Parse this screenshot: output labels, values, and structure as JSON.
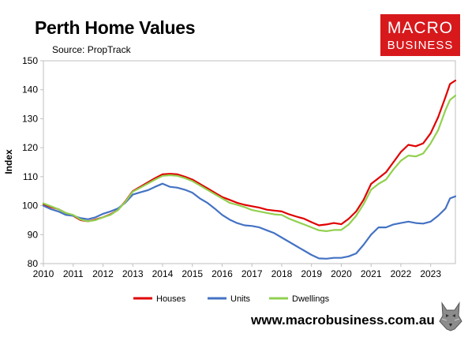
{
  "title": "Perth Home Values",
  "source": "Source: PropTrack",
  "logo": {
    "line1": "MACRO",
    "line2": "BUSINESS"
  },
  "url": "www.macrobusiness.com.au",
  "badge_icon": "wolf-icon",
  "colors": {
    "houses": "#e00000",
    "units": "#4472c4",
    "dwellings": "#92d050",
    "logo_bg": "#d7191c"
  },
  "chart_data": {
    "type": "line",
    "title": "Perth Home Values",
    "ylabel": "Index",
    "xlabel": "",
    "ylim": [
      80,
      150
    ],
    "xlim": [
      2010,
      2023.83
    ],
    "yticks": [
      80,
      90,
      100,
      110,
      120,
      130,
      140,
      150
    ],
    "xticks": [
      2010,
      2011,
      2012,
      2013,
      2014,
      2015,
      2016,
      2017,
      2018,
      2019,
      2020,
      2021,
      2022,
      2023
    ],
    "grid": false,
    "legend_position": "bottom",
    "series": [
      {
        "name": "Houses",
        "color": "#e00000",
        "x": [
          2010,
          2010.25,
          2010.5,
          2010.75,
          2011,
          2011.25,
          2011.5,
          2011.75,
          2012,
          2012.25,
          2012.5,
          2012.75,
          2013,
          2013.25,
          2013.5,
          2013.75,
          2014,
          2014.25,
          2014.5,
          2014.75,
          2015,
          2015.25,
          2015.5,
          2015.75,
          2016,
          2016.25,
          2016.5,
          2016.75,
          2017,
          2017.25,
          2017.5,
          2017.75,
          2018,
          2018.25,
          2018.5,
          2018.75,
          2019,
          2019.25,
          2019.5,
          2019.75,
          2020,
          2020.25,
          2020.5,
          2020.75,
          2021,
          2021.25,
          2021.5,
          2021.75,
          2022,
          2022.25,
          2022.5,
          2022.75,
          2023,
          2023.25,
          2023.5,
          2023.65,
          2023.83
        ],
        "values": [
          100.5,
          99.5,
          98.8,
          97.5,
          96.5,
          95.0,
          94.6,
          95.2,
          96.0,
          97.0,
          98.5,
          101.5,
          105.0,
          106.5,
          108.0,
          109.5,
          110.8,
          111.0,
          110.8,
          110.0,
          109.0,
          107.5,
          106.0,
          104.5,
          103.0,
          102.0,
          101.0,
          100.3,
          99.8,
          99.3,
          98.6,
          98.3,
          98.0,
          97.0,
          96.2,
          95.5,
          94.3,
          93.2,
          93.5,
          94.0,
          93.6,
          95.5,
          98.0,
          102.0,
          107.5,
          109.5,
          111.5,
          115.0,
          118.5,
          121.0,
          120.5,
          121.5,
          125.0,
          130.5,
          137.5,
          142.0,
          143.2
        ]
      },
      {
        "name": "Units",
        "color": "#4472c4",
        "x": [
          2010,
          2010.25,
          2010.5,
          2010.75,
          2011,
          2011.25,
          2011.5,
          2011.75,
          2012,
          2012.25,
          2012.5,
          2012.75,
          2013,
          2013.25,
          2013.5,
          2013.75,
          2014,
          2014.25,
          2014.5,
          2014.75,
          2015,
          2015.25,
          2015.5,
          2015.75,
          2016,
          2016.25,
          2016.5,
          2016.75,
          2017,
          2017.25,
          2017.5,
          2017.75,
          2018,
          2018.25,
          2018.5,
          2018.75,
          2019,
          2019.25,
          2019.5,
          2019.75,
          2020,
          2020.25,
          2020.5,
          2020.75,
          2021,
          2021.25,
          2021.5,
          2021.75,
          2022,
          2022.25,
          2022.5,
          2022.75,
          2023,
          2023.25,
          2023.5,
          2023.65,
          2023.83
        ],
        "values": [
          100.0,
          98.8,
          98.0,
          96.8,
          96.5,
          95.7,
          95.3,
          96.0,
          97.2,
          98.0,
          99.0,
          101.0,
          103.8,
          104.6,
          105.3,
          106.5,
          107.6,
          106.5,
          106.2,
          105.5,
          104.5,
          102.5,
          101.0,
          99.0,
          96.8,
          95.2,
          94.0,
          93.2,
          93.0,
          92.5,
          91.5,
          90.5,
          89.0,
          87.5,
          86.0,
          84.5,
          83.0,
          81.8,
          81.7,
          82.0,
          82.0,
          82.5,
          83.5,
          86.5,
          90.0,
          92.5,
          92.5,
          93.5,
          94.0,
          94.5,
          94.0,
          93.8,
          94.5,
          96.5,
          99.0,
          102.5,
          103.2
        ]
      },
      {
        "name": "Dwellings",
        "color": "#92d050",
        "x": [
          2010,
          2010.25,
          2010.5,
          2010.75,
          2011,
          2011.25,
          2011.5,
          2011.75,
          2012,
          2012.25,
          2012.5,
          2012.75,
          2013,
          2013.25,
          2013.5,
          2013.75,
          2014,
          2014.25,
          2014.5,
          2014.75,
          2015,
          2015.25,
          2015.5,
          2015.75,
          2016,
          2016.25,
          2016.5,
          2016.75,
          2017,
          2017.25,
          2017.5,
          2017.75,
          2018,
          2018.25,
          2018.5,
          2018.75,
          2019,
          2019.25,
          2019.5,
          2019.75,
          2020,
          2020.25,
          2020.5,
          2020.75,
          2021,
          2021.25,
          2021.5,
          2021.75,
          2022,
          2022.25,
          2022.5,
          2022.75,
          2023,
          2023.25,
          2023.5,
          2023.65,
          2023.83
        ],
        "values": [
          100.8,
          99.8,
          98.8,
          97.5,
          96.8,
          95.2,
          94.6,
          95.0,
          96.0,
          96.8,
          98.5,
          101.3,
          104.8,
          106.2,
          107.6,
          109.0,
          110.3,
          110.5,
          110.3,
          109.5,
          108.5,
          107.0,
          105.5,
          104.0,
          102.5,
          101.0,
          100.3,
          99.5,
          98.5,
          98.0,
          97.5,
          97.0,
          96.8,
          95.5,
          94.5,
          93.5,
          92.5,
          91.5,
          91.2,
          91.6,
          91.6,
          93.5,
          96.5,
          100.5,
          105.5,
          107.5,
          109.0,
          112.5,
          115.5,
          117.3,
          117.0,
          118.0,
          121.5,
          126.0,
          133.0,
          136.5,
          138.0
        ]
      }
    ]
  }
}
